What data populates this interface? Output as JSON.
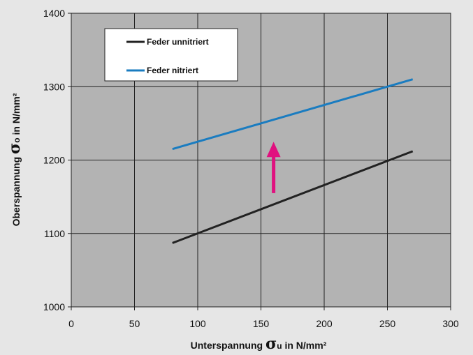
{
  "chart_data": {
    "type": "line",
    "x_min": 0,
    "x_max": 300,
    "y_min": 1000,
    "y_max": 1400,
    "x_ticks": [
      "0",
      "50",
      "100",
      "150",
      "200",
      "250",
      "300"
    ],
    "y_ticks": [
      "1000",
      "1100",
      "1200",
      "1300",
      "1400"
    ],
    "xlabel": {
      "pre": "Unterspannung ",
      "symbol": "σ",
      "sub": "u",
      "post": " in N/mm²"
    },
    "ylabel": {
      "pre": "Oberspannung ",
      "symbol": "σ",
      "sub": "o",
      "post": " in N/mm²"
    },
    "grid": true,
    "legend_position": "top-left",
    "series": [
      {
        "name": "Feder unnitriert",
        "color": "#222222",
        "x": [
          80,
          270
        ],
        "y": [
          1087,
          1212
        ]
      },
      {
        "name": "Feder nitriert",
        "color": "#1a7cc0",
        "x": [
          80,
          270
        ],
        "y": [
          1215,
          1310
        ]
      }
    ],
    "arrow": {
      "color": "#e0117f",
      "x": 160,
      "y_from": 1155,
      "y_to": 1225
    }
  }
}
